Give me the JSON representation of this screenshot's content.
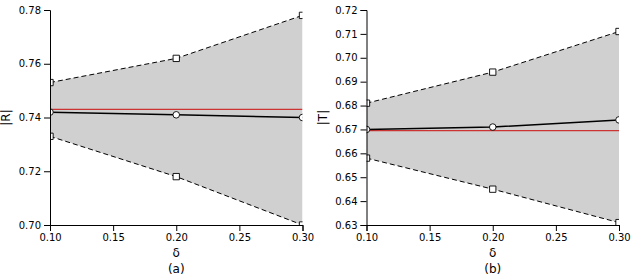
{
  "chart_data": [
    {
      "type": "line",
      "title": "(a)",
      "xlabel": "δ",
      "ylabel": "|R|",
      "x": [
        0.1,
        0.2,
        0.3
      ],
      "xlim": [
        0.1,
        0.3
      ],
      "xticks": [
        {
          "value": 0.1,
          "label": "0.10"
        },
        0.15,
        {
          "value": 0.2,
          "label": "0.20"
        },
        0.25,
        {
          "value": 0.3,
          "label": "0.30"
        }
      ],
      "ylim": [
        0.7,
        0.78
      ],
      "yticks": [
        {
          "value": 0.7,
          "label": "0.70"
        },
        0.72,
        0.74,
        0.76,
        0.78
      ],
      "grid": false,
      "series": [
        {
          "type": "area",
          "color": "#d0d0d0",
          "values": [
            0.753,
            0.762,
            0.778
          ],
          "lower": [
            0.733,
            0.718,
            0.7
          ],
          "marker": "square",
          "line_style": "dashed"
        },
        {
          "type": "line",
          "color": "#000000",
          "values": [
            0.742,
            0.741,
            0.74
          ],
          "marker": "circle",
          "line_style": "solid"
        }
      ],
      "reference_lines": [
        {
          "value": 0.743,
          "color": "#cc3333"
        }
      ]
    },
    {
      "type": "line",
      "title": "(b)",
      "xlabel": "δ",
      "ylabel": "|T|",
      "x": [
        0.1,
        0.2,
        0.3
      ],
      "xlim": [
        0.1,
        0.3
      ],
      "xticks": [
        {
          "value": 0.1,
          "label": "0.10"
        },
        0.15,
        {
          "value": 0.2,
          "label": "0.20"
        },
        0.25,
        {
          "value": 0.3,
          "label": "0.30"
        }
      ],
      "ylim": [
        0.63,
        0.72
      ],
      "yticks": [
        0.63,
        0.64,
        0.65,
        0.66,
        0.67,
        0.68,
        0.69,
        {
          "value": 0.7,
          "label": "0.70"
        },
        0.71,
        0.72
      ],
      "grid": false,
      "series": [
        {
          "type": "area",
          "color": "#d0d0d0",
          "values": [
            0.681,
            0.694,
            0.711
          ],
          "lower": [
            0.658,
            0.645,
            0.631
          ],
          "marker": "square",
          "line_style": "dashed"
        },
        {
          "type": "line",
          "color": "#000000",
          "values": [
            0.67,
            0.671,
            0.674
          ],
          "marker": "circle",
          "line_style": "solid"
        }
      ],
      "reference_lines": [
        {
          "value": 0.6695,
          "color": "#cc3333"
        }
      ]
    }
  ]
}
